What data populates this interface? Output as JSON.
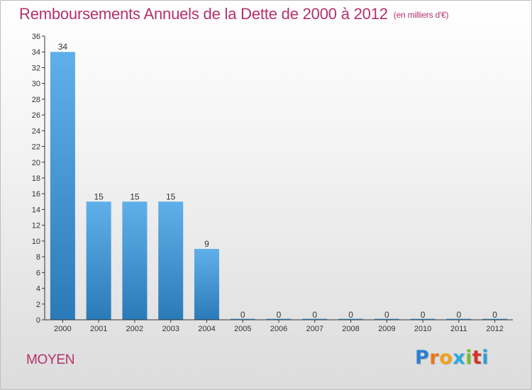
{
  "title": "Remboursements Annuels de la Dette de 2000 à 2012",
  "subtitle": "(en milliers d'€)",
  "commune": "MOYEN",
  "logo": {
    "letters": [
      "P",
      "r",
      "o",
      "x",
      "i",
      "t",
      "i"
    ],
    "colors": [
      "#2a7fd0",
      "#e8761a",
      "#f0a21a",
      "#2aa9e0",
      "#7abf2a",
      "#d4302a",
      "#2a9fd8"
    ]
  },
  "colors": {
    "bar_top": "#5fb0ea",
    "bar_bottom": "#2a7ab8",
    "axis": "#333333",
    "text": "#333333"
  },
  "chart_data": {
    "type": "bar",
    "categories": [
      "2000",
      "2001",
      "2002",
      "2003",
      "2004",
      "2005",
      "2006",
      "2007",
      "2008",
      "2009",
      "2010",
      "2011",
      "2012"
    ],
    "values": [
      34,
      15,
      15,
      15,
      9,
      0,
      0,
      0,
      0,
      0,
      0,
      0,
      0
    ],
    "ylim": [
      0,
      36
    ],
    "yticks": [
      0,
      2,
      4,
      6,
      8,
      10,
      12,
      14,
      16,
      18,
      20,
      22,
      24,
      26,
      28,
      30,
      32,
      34,
      36
    ],
    "grid": false
  }
}
